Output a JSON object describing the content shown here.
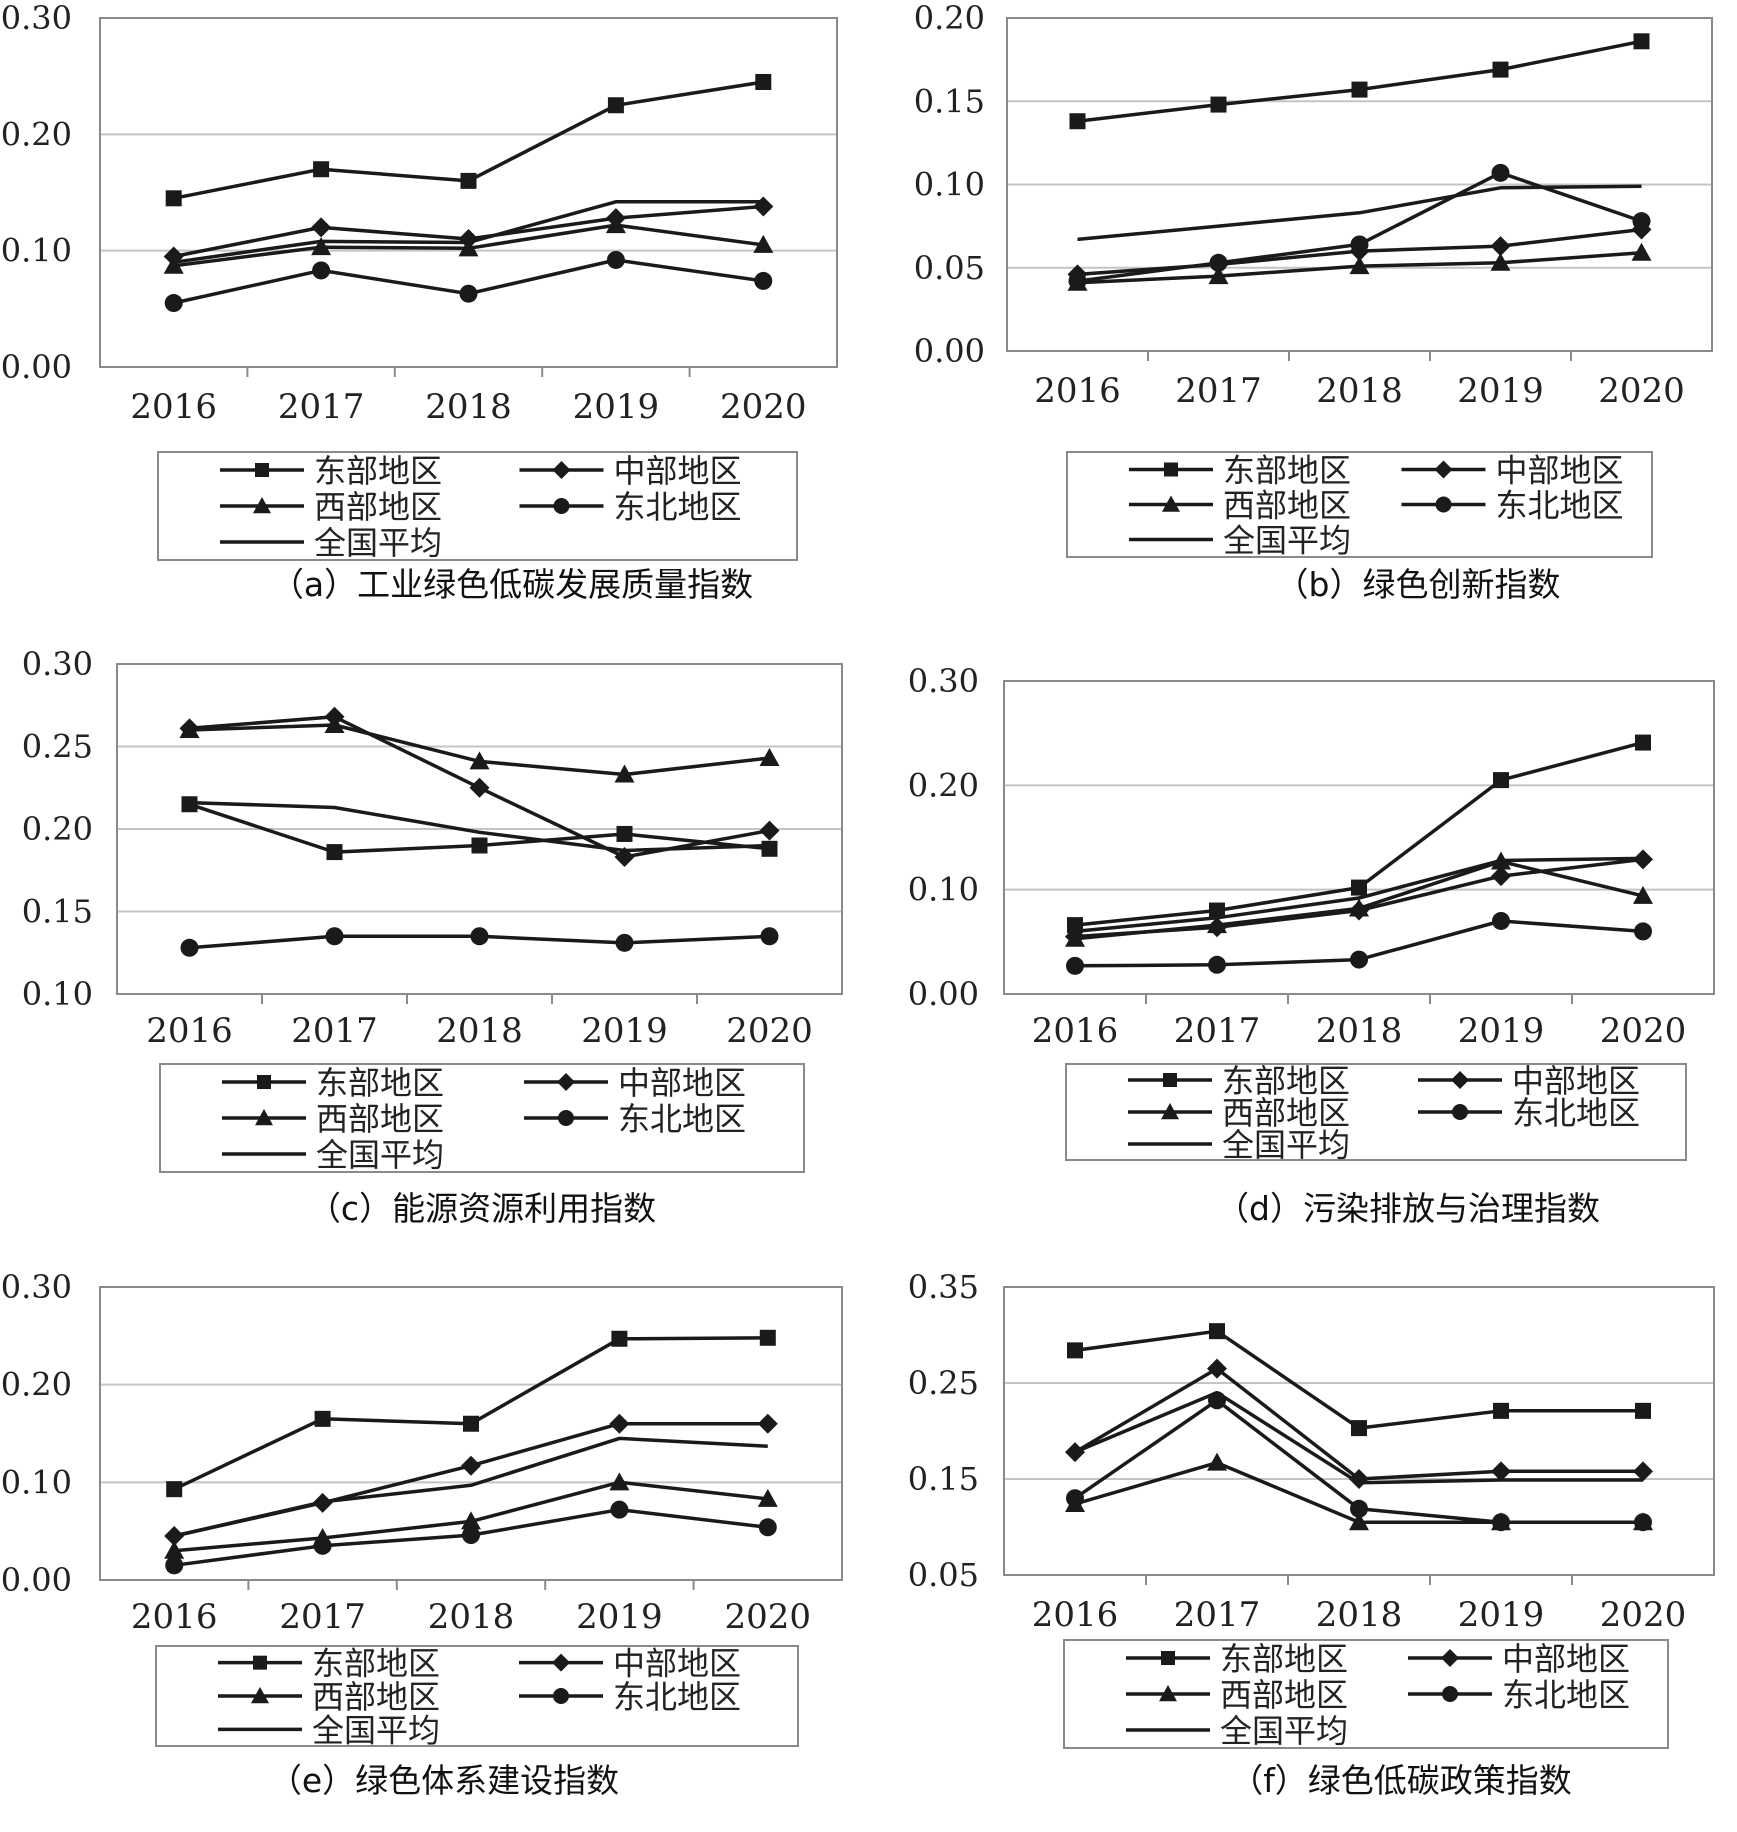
{
  "figure": {
    "legend_labels": {
      "east": "东部地区",
      "central": "中部地区",
      "west": "西部地区",
      "northeast": "东北地区",
      "national": "全国平均"
    },
    "colors": {
      "line": "#1a1a1a",
      "grid": "#c4c4c4",
      "frame": "#8a8a8a"
    }
  },
  "chart_data": [
    {
      "type": "line",
      "title": "（a）工业绿色低碳发展质量指数",
      "categories": [
        "2016",
        "2017",
        "2018",
        "2019",
        "2020"
      ],
      "ylim": [
        0,
        0.3
      ],
      "yticks": [
        "0.00",
        "0.10",
        "0.20",
        "0.30"
      ],
      "grid": true,
      "legend_position": "bottom",
      "series": [
        {
          "name": "东部地区",
          "key": "east",
          "marker": "square",
          "values": [
            0.145,
            0.17,
            0.16,
            0.225,
            0.245
          ]
        },
        {
          "name": "中部地区",
          "key": "central",
          "marker": "diamond",
          "values": [
            0.095,
            0.12,
            0.11,
            0.128,
            0.138
          ]
        },
        {
          "name": "西部地区",
          "key": "west",
          "marker": "triangle",
          "values": [
            0.087,
            0.103,
            0.102,
            0.122,
            0.105
          ]
        },
        {
          "name": "东北地区",
          "key": "northeast",
          "marker": "circle",
          "values": [
            0.055,
            0.083,
            0.063,
            0.092,
            0.074
          ]
        },
        {
          "name": "全国平均",
          "key": "national",
          "marker": "none",
          "values": [
            0.09,
            0.108,
            0.107,
            0.142,
            0.142
          ]
        }
      ]
    },
    {
      "type": "line",
      "title": "（b）绿色创新指数",
      "categories": [
        "2016",
        "2017",
        "2018",
        "2019",
        "2020"
      ],
      "ylim": [
        0,
        0.2
      ],
      "yticks": [
        "0.00",
        "0.05",
        "0.10",
        "0.15",
        "0.20"
      ],
      "grid": true,
      "legend_position": "bottom",
      "series": [
        {
          "name": "东部地区",
          "key": "east",
          "marker": "square",
          "values": [
            0.138,
            0.148,
            0.157,
            0.169,
            0.186
          ]
        },
        {
          "name": "中部地区",
          "key": "central",
          "marker": "diamond",
          "values": [
            0.046,
            0.052,
            0.06,
            0.063,
            0.073
          ]
        },
        {
          "name": "西部地区",
          "key": "west",
          "marker": "triangle",
          "values": [
            0.041,
            0.045,
            0.051,
            0.053,
            0.059
          ]
        },
        {
          "name": "东北地区",
          "key": "northeast",
          "marker": "circle",
          "values": [
            0.042,
            0.053,
            0.064,
            0.107,
            0.078
          ]
        },
        {
          "name": "全国平均",
          "key": "national",
          "marker": "none",
          "values": [
            0.067,
            0.075,
            0.083,
            0.098,
            0.099
          ]
        }
      ]
    },
    {
      "type": "line",
      "title": "（c）能源资源利用指数",
      "categories": [
        "2016",
        "2017",
        "2018",
        "2019",
        "2020"
      ],
      "ylim": [
        0.1,
        0.3
      ],
      "yticks": [
        "0.10",
        "0.15",
        "0.20",
        "0.25",
        "0.30"
      ],
      "grid": true,
      "legend_position": "bottom",
      "series": [
        {
          "name": "东部地区",
          "key": "east",
          "marker": "square",
          "values": [
            0.215,
            0.186,
            0.19,
            0.197,
            0.188
          ]
        },
        {
          "name": "中部地区",
          "key": "central",
          "marker": "diamond",
          "values": [
            0.261,
            0.268,
            0.225,
            0.183,
            0.199
          ]
        },
        {
          "name": "西部地区",
          "key": "west",
          "marker": "triangle",
          "values": [
            0.26,
            0.263,
            0.241,
            0.233,
            0.243
          ]
        },
        {
          "name": "东北地区",
          "key": "northeast",
          "marker": "circle",
          "values": [
            0.128,
            0.135,
            0.135,
            0.131,
            0.135
          ]
        },
        {
          "name": "全国平均",
          "key": "national",
          "marker": "none",
          "values": [
            0.216,
            0.213,
            0.198,
            0.187,
            0.19
          ]
        }
      ]
    },
    {
      "type": "line",
      "title": "（d）污染排放与治理指数",
      "categories": [
        "2016",
        "2017",
        "2018",
        "2019",
        "2020"
      ],
      "ylim": [
        0,
        0.3
      ],
      "yticks": [
        "0.00",
        "0.10",
        "0.20",
        "0.30"
      ],
      "grid": true,
      "legend_position": "bottom",
      "series": [
        {
          "name": "东部地区",
          "key": "east",
          "marker": "square",
          "values": [
            0.066,
            0.08,
            0.102,
            0.205,
            0.241
          ]
        },
        {
          "name": "中部地区",
          "key": "central",
          "marker": "diamond",
          "values": [
            0.055,
            0.064,
            0.08,
            0.113,
            0.129
          ]
        },
        {
          "name": "西部地区",
          "key": "west",
          "marker": "triangle",
          "values": [
            0.053,
            0.066,
            0.082,
            0.127,
            0.094
          ]
        },
        {
          "name": "东北地区",
          "key": "northeast",
          "marker": "circle",
          "values": [
            0.027,
            0.028,
            0.033,
            0.07,
            0.06
          ]
        },
        {
          "name": "全国平均",
          "key": "national",
          "marker": "none",
          "values": [
            0.06,
            0.073,
            0.092,
            0.128,
            0.13
          ]
        }
      ]
    },
    {
      "type": "line",
      "title": "（e）绿色体系建设指数",
      "categories": [
        "2016",
        "2017",
        "2018",
        "2019",
        "2020"
      ],
      "ylim": [
        0,
        0.3
      ],
      "yticks": [
        "0.00",
        "0.10",
        "0.20",
        "0.30"
      ],
      "grid": true,
      "legend_position": "bottom",
      "series": [
        {
          "name": "东部地区",
          "key": "east",
          "marker": "square",
          "values": [
            0.093,
            0.165,
            0.16,
            0.247,
            0.248
          ]
        },
        {
          "name": "中部地区",
          "key": "central",
          "marker": "diamond",
          "values": [
            0.045,
            0.079,
            0.117,
            0.16,
            0.16
          ]
        },
        {
          "name": "西部地区",
          "key": "west",
          "marker": "triangle",
          "values": [
            0.03,
            0.043,
            0.06,
            0.1,
            0.083
          ]
        },
        {
          "name": "东北地区",
          "key": "northeast",
          "marker": "circle",
          "values": [
            0.015,
            0.035,
            0.046,
            0.072,
            0.054
          ]
        },
        {
          "name": "全国平均",
          "key": "national",
          "marker": "none",
          "values": [
            0.045,
            0.08,
            0.097,
            0.145,
            0.137
          ]
        }
      ]
    },
    {
      "type": "line",
      "title": "（f）绿色低碳政策指数",
      "categories": [
        "2016",
        "2017",
        "2018",
        "2019",
        "2020"
      ],
      "ylim": [
        0.05,
        0.35
      ],
      "yticks": [
        "0.05",
        "0.15",
        "0.25",
        "0.35"
      ],
      "grid": true,
      "legend_position": "bottom",
      "series": [
        {
          "name": "东部地区",
          "key": "east",
          "marker": "square",
          "values": [
            0.284,
            0.304,
            0.203,
            0.221,
            0.221
          ]
        },
        {
          "name": "中部地区",
          "key": "central",
          "marker": "diamond",
          "values": [
            0.178,
            0.265,
            0.15,
            0.158,
            0.158
          ]
        },
        {
          "name": "西部地区",
          "key": "west",
          "marker": "triangle",
          "values": [
            0.124,
            0.167,
            0.105,
            0.105,
            0.105
          ]
        },
        {
          "name": "东北地区",
          "key": "northeast",
          "marker": "circle",
          "values": [
            0.13,
            0.232,
            0.119,
            0.105,
            0.105
          ]
        },
        {
          "name": "全国平均",
          "key": "national",
          "marker": "none",
          "values": [
            0.178,
            0.24,
            0.146,
            0.149,
            0.149
          ]
        }
      ]
    }
  ]
}
